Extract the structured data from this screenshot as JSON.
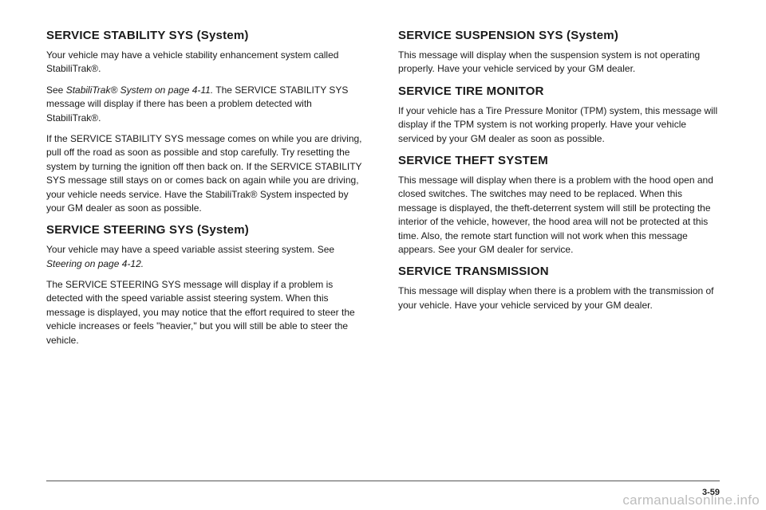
{
  "left": {
    "h1": "SERVICE STABILITY SYS (System)",
    "p1": "Your vehicle may have a vehicle stability enhancement system called StabiliTrak®.",
    "p2a": "See ",
    "p2b": "StabiliTrak® System on page 4-11.",
    "p2c": " The SERVICE STABILITY SYS message will display if there has been a problem detected with StabiliTrak®.",
    "p3": "If the SERVICE STABILITY SYS message comes on while you are driving, pull off the road as soon as possible and stop carefully. Try resetting the system by turning the ignition off then back on. If the SERVICE STABILITY SYS message still stays on or comes back on again while you are driving, your vehicle needs service. Have the StabiliTrak® System inspected by your GM dealer as soon as possible.",
    "h2": "SERVICE STEERING SYS (System)",
    "p4a": "Your vehicle may have a speed variable assist steering system. See ",
    "p4b": "Steering on page 4-12.",
    "p5": "The SERVICE STEERING SYS message will display if a problem is detected with the speed variable assist steering system. When this message is displayed, you may notice that the effort required to steer the vehicle increases or feels \"heavier,\" but you will still be able to steer the vehicle."
  },
  "right": {
    "h1": "SERVICE SUSPENSION SYS (System)",
    "p1": "This message will display when the suspension system is not operating properly. Have your vehicle serviced by your GM dealer.",
    "h2": "SERVICE TIRE MONITOR",
    "p2": "If your vehicle has a Tire Pressure Monitor (TPM) system, this message will display if the TPM system is not working properly. Have your vehicle serviced by your GM dealer as soon as possible.",
    "h3": "SERVICE THEFT SYSTEM",
    "p3": "This message will display when there is a problem with the hood open and closed switches. The switches may need to be replaced. When this message is displayed, the theft-deterrent system will still be protecting the interior of the vehicle, however, the hood area will not be protected at this time. Also, the remote start function will not work when this message appears. See your GM dealer for service.",
    "h4": "SERVICE TRANSMISSION",
    "p4": "This message will display when there is a problem with the transmission of your vehicle. Have your vehicle serviced by your GM dealer."
  },
  "pagenum": "3-59",
  "watermark": "carmanualsonline.info"
}
